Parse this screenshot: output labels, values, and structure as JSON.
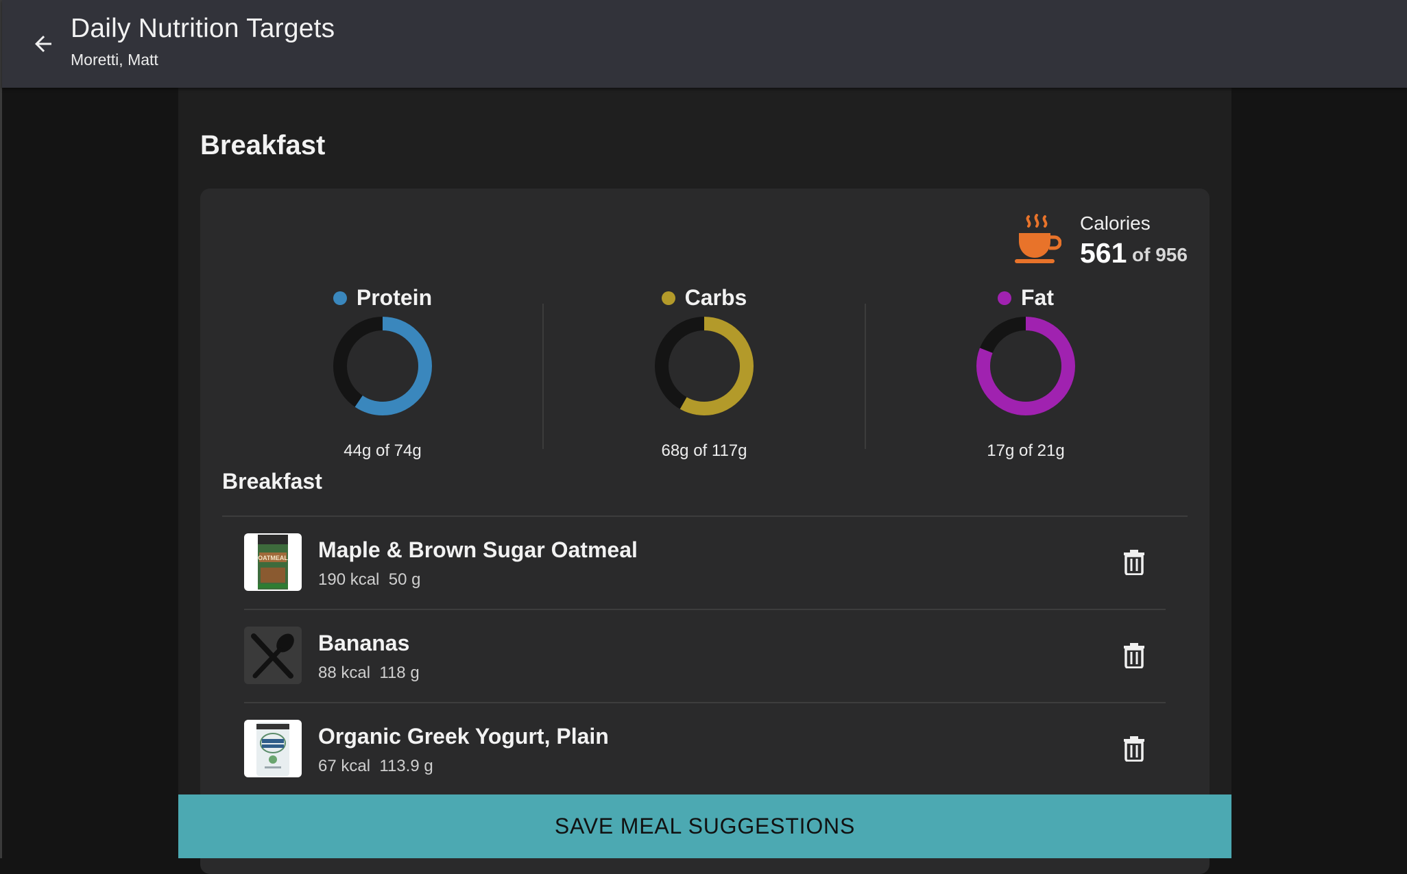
{
  "appbar": {
    "title": "Daily Nutrition Targets",
    "subtitle": "Moretti, Matt"
  },
  "meal": {
    "title": "Breakfast",
    "calories": {
      "label": "Calories",
      "value": "561",
      "of_text": "of 956",
      "icon": "coffee-cup-icon",
      "icon_color": "#e8732a"
    },
    "macros": [
      {
        "name": "Protein",
        "amount_text": "44g of 74g",
        "current": 44,
        "target": 74,
        "color": "#3a87bd"
      },
      {
        "name": "Carbs",
        "amount_text": "68g of 117g",
        "current": 68,
        "target": 117,
        "color": "#b39a2a"
      },
      {
        "name": "Fat",
        "amount_text": "17g of 21g",
        "current": 17,
        "target": 21,
        "color": "#a022b0"
      }
    ],
    "list_title": "Breakfast",
    "items": [
      {
        "name": "Maple & Brown Sugar Oatmeal",
        "kcal": "190 kcal",
        "weight": "50 g",
        "thumb": "oatmeal-box-thumbnail"
      },
      {
        "name": "Bananas",
        "kcal": "88 kcal",
        "weight": "118 g",
        "thumb": "fork-spoon-placeholder-icon"
      },
      {
        "name": "Organic Greek Yogurt, Plain",
        "kcal": "67 kcal",
        "weight": "113.9 g",
        "thumb": "yogurt-tub-thumbnail"
      }
    ]
  },
  "actions": {
    "save_label": "SAVE MEAL SUGGESTIONS",
    "delete_icon": "trash-icon"
  },
  "colors": {
    "appbar": "#32333a",
    "background": "#141414",
    "panel": "#1f1f1f",
    "card": "#2a2a2b",
    "accent_button": "#4ca9b2",
    "ring_track": "#141414"
  }
}
